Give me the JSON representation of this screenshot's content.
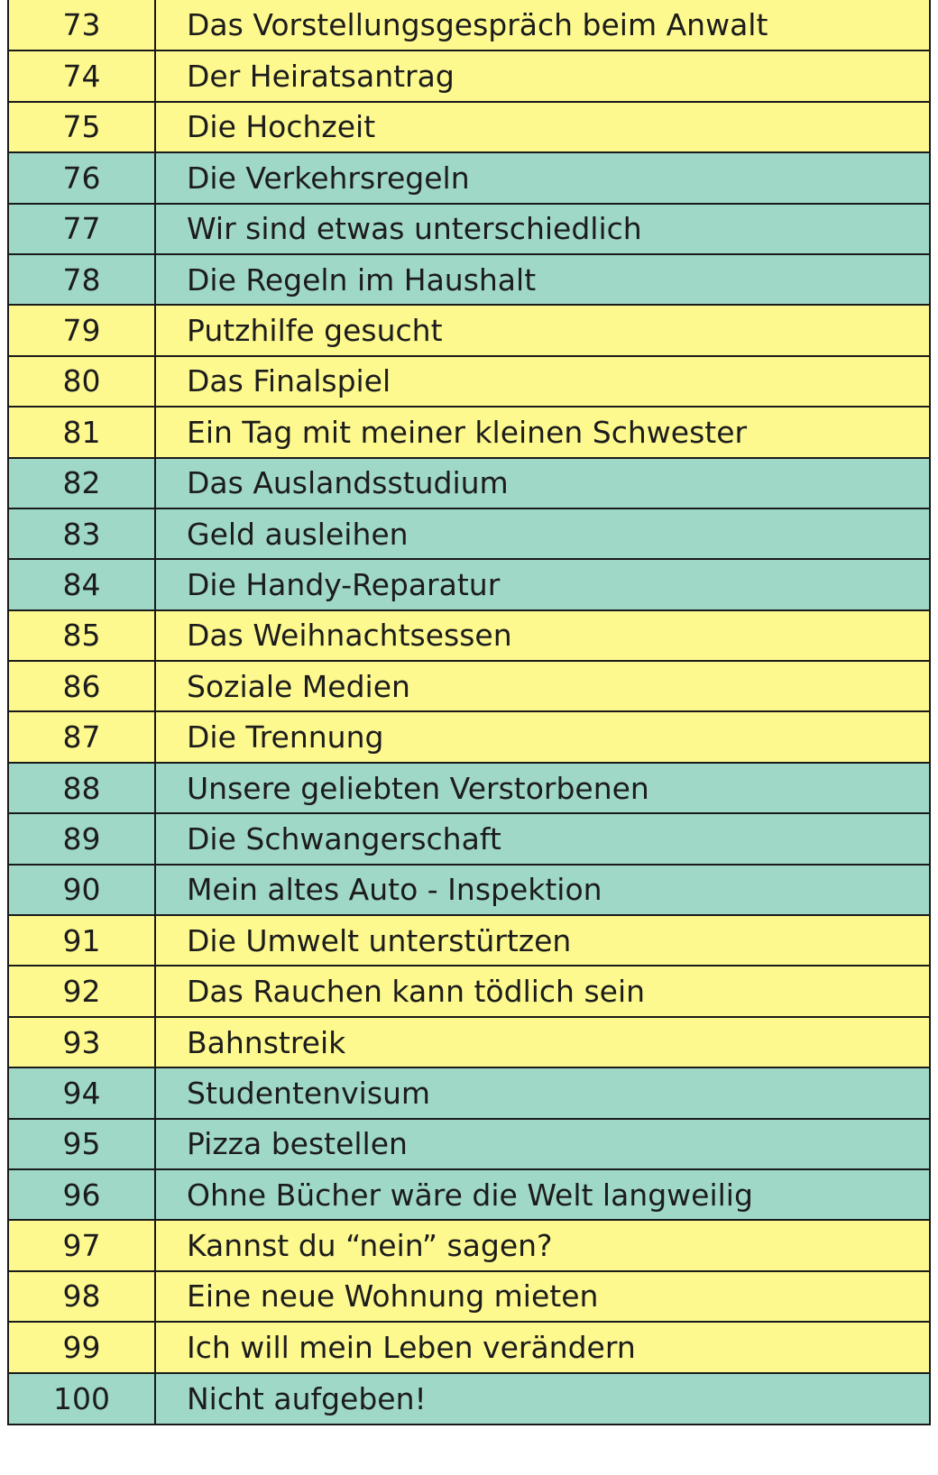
{
  "colors": {
    "yellow": "#fdf98e",
    "teal": "#9fd8c7"
  },
  "rows": [
    {
      "num": "73",
      "title": "Das Vorstellungsgespräch beim Anwalt",
      "color": "yellow"
    },
    {
      "num": "74",
      "title": "Der Heiratsantrag",
      "color": "yellow"
    },
    {
      "num": "75",
      "title": "Die Hochzeit",
      "color": "yellow"
    },
    {
      "num": "76",
      "title": "Die Verkehrsregeln",
      "color": "teal"
    },
    {
      "num": "77",
      "title": "Wir sind etwas unterschiedlich",
      "color": "teal"
    },
    {
      "num": "78",
      "title": "Die Regeln im Haushalt",
      "color": "teal"
    },
    {
      "num": "79",
      "title": "Putzhilfe gesucht",
      "color": "yellow"
    },
    {
      "num": "80",
      "title": "Das Finalspiel",
      "color": "yellow"
    },
    {
      "num": "81",
      "title": "Ein Tag mit meiner kleinen Schwester",
      "color": "yellow"
    },
    {
      "num": "82",
      "title": "Das Auslandsstudium",
      "color": "teal"
    },
    {
      "num": "83",
      "title": "Geld ausleihen",
      "color": "teal"
    },
    {
      "num": "84",
      "title": "Die Handy-Reparatur",
      "color": "teal"
    },
    {
      "num": "85",
      "title": "Das Weihnachtsessen",
      "color": "yellow"
    },
    {
      "num": "86",
      "title": "Soziale Medien",
      "color": "yellow"
    },
    {
      "num": "87",
      "title": "Die Trennung",
      "color": "yellow"
    },
    {
      "num": "88",
      "title": "Unsere geliebten Verstorbenen",
      "color": "teal"
    },
    {
      "num": "89",
      "title": "Die Schwangerschaft",
      "color": "teal"
    },
    {
      "num": "90",
      "title": "Mein altes Auto - Inspektion",
      "color": "teal"
    },
    {
      "num": "91",
      "title": "Die Umwelt unterstürtzen",
      "color": "yellow"
    },
    {
      "num": "92",
      "title": "Das Rauchen kann tödlich sein",
      "color": "yellow"
    },
    {
      "num": "93",
      "title": "Bahnstreik",
      "color": "yellow"
    },
    {
      "num": "94",
      "title": "Studentenvisum",
      "color": "teal"
    },
    {
      "num": "95",
      "title": "Pizza bestellen",
      "color": "teal"
    },
    {
      "num": "96",
      "title": "Ohne Bücher wäre die Welt langweilig",
      "color": "teal"
    },
    {
      "num": "97",
      "title": "Kannst du  “nein”  sagen?",
      "color": "yellow"
    },
    {
      "num": "98",
      "title": "Eine neue Wohnung mieten",
      "color": "yellow"
    },
    {
      "num": "99",
      "title": "Ich will mein Leben verändern",
      "color": "yellow"
    },
    {
      "num": "100",
      "title": "Nicht aufgeben!",
      "color": "teal"
    }
  ]
}
